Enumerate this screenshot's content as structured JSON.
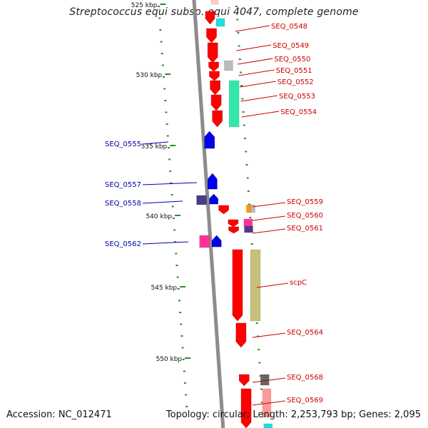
{
  "title": "Streptococcus equi subsp. equi 4047, complete genome",
  "footer": {
    "accession": "Accession: NC_012471",
    "topology": "Topology: circular; Length: 2,253,793 bp; Genes: 2,095"
  },
  "colors": {
    "backbone": "#8c8c8c",
    "tick": "#2e8b2e",
    "forward_label": "#cc0000",
    "reverse_label": "#0000aa",
    "cds_red": "#ff0000",
    "cds_blue": "#0000ee",
    "teal": "#33e6aa",
    "olive": "#c8c07a",
    "cyan": "#22dddd",
    "grey": "#bbbbbb",
    "orange": "#ff9900",
    "magenta": "#ff3399",
    "purple": "#4b3b8c",
    "dark_grey": "#666666",
    "pink": "#ff9999"
  },
  "scale_labels": [
    "525 kbp",
    "530 kbp",
    "535 kbp",
    "540 kbp",
    "545 kbp",
    "550 kbp"
  ],
  "forward_genes": [
    "SEQ_0548",
    "SEQ_0549",
    "SEQ_0550",
    "SEQ_0551",
    "SEQ_0552",
    "SEQ_0553",
    "SEQ_0554",
    "SEQ_0559",
    "SEQ_0560",
    "SEQ_0561",
    "scpC",
    "SEQ_0564",
    "SEQ_0568",
    "SEQ_0569"
  ],
  "reverse_genes": [
    "SEQ_0555",
    "SEQ_0557",
    "SEQ_0558",
    "SEQ_0562"
  ]
}
